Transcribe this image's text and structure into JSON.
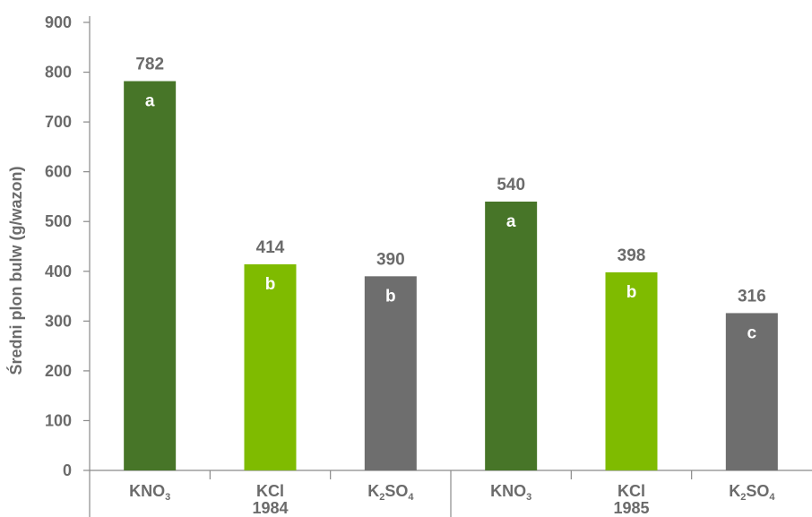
{
  "chart_data": {
    "type": "bar",
    "title": "",
    "ylabel": "Średni plon bulw (g/wazon)",
    "ylim": [
      0,
      900
    ],
    "yticks": [
      0,
      100,
      200,
      300,
      400,
      500,
      600,
      700,
      800,
      900
    ],
    "groups": [
      {
        "label": "1984",
        "bars": [
          {
            "category": "KNO3",
            "value": 782,
            "letter": "a",
            "color": "#477528"
          },
          {
            "category": "KCl",
            "value": 414,
            "letter": "b",
            "color": "#7fbb00"
          },
          {
            "category": "K2SO4",
            "value": 390,
            "letter": "b",
            "color": "#6e6e6e"
          }
        ]
      },
      {
        "label": "1985",
        "bars": [
          {
            "category": "KNO3",
            "value": 540,
            "letter": "a",
            "color": "#477528"
          },
          {
            "category": "KCl",
            "value": 398,
            "letter": "b",
            "color": "#7fbb00"
          },
          {
            "category": "K2SO4",
            "value": 316,
            "letter": "c",
            "color": "#6e6e6e"
          }
        ]
      }
    ],
    "grid": false,
    "legend": "none"
  }
}
